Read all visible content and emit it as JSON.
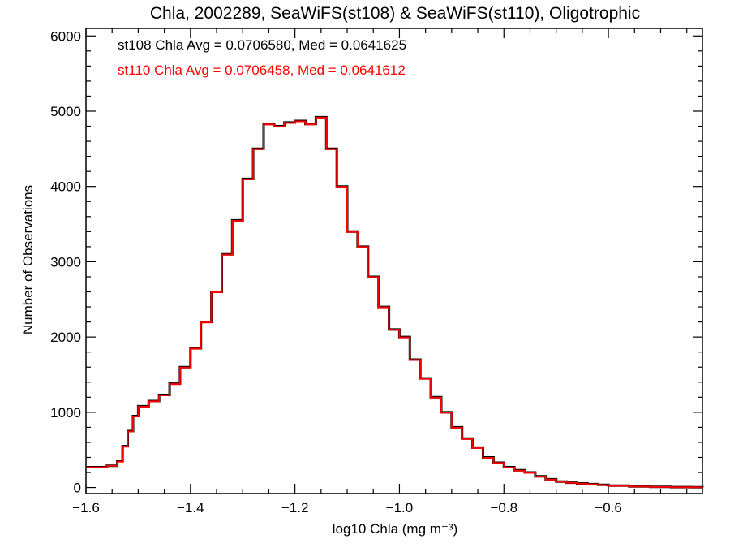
{
  "chart_data": {
    "type": "line",
    "step": true,
    "title": "Chla, 2002289, SeaWiFS(st108) & SeaWiFS(st110), Oligotrophic",
    "xlabel": "log10 Chla (mg m⁻³)",
    "ylabel": "Number of Observations",
    "xlim": [
      -1.6,
      -0.42
    ],
    "ylim": [
      -80,
      6100
    ],
    "x_ticks": [
      -1.6,
      -1.4,
      -1.2,
      -1.0,
      -0.8,
      -0.6
    ],
    "x_tick_labels": [
      "−1.6",
      "−1.4",
      "−1.2",
      "−1.0",
      "−0.8",
      "−0.6"
    ],
    "y_ticks": [
      0,
      1000,
      2000,
      3000,
      4000,
      5000,
      6000
    ],
    "y_tick_labels": [
      "0",
      "1000",
      "2000",
      "3000",
      "4000",
      "5000",
      "6000"
    ],
    "grid": false,
    "legend_placement": "top-left",
    "series": [
      {
        "name": "st108 Chla Avg = 0.0706580, Med = 0.0641625",
        "color": "#000000",
        "x": [
          -1.6,
          -1.58,
          -1.56,
          -1.54,
          -1.53,
          -1.52,
          -1.51,
          -1.5,
          -1.48,
          -1.46,
          -1.44,
          -1.42,
          -1.4,
          -1.38,
          -1.36,
          -1.34,
          -1.32,
          -1.3,
          -1.28,
          -1.26,
          -1.24,
          -1.22,
          -1.2,
          -1.18,
          -1.16,
          -1.14,
          -1.12,
          -1.1,
          -1.08,
          -1.06,
          -1.04,
          -1.02,
          -1.0,
          -0.98,
          -0.96,
          -0.94,
          -0.92,
          -0.9,
          -0.88,
          -0.86,
          -0.84,
          -0.82,
          -0.8,
          -0.78,
          -0.76,
          -0.74,
          -0.72,
          -0.7,
          -0.68,
          -0.66,
          -0.64,
          -0.62,
          -0.6,
          -0.56,
          -0.52,
          -0.48,
          -0.44,
          -0.42
        ],
        "y": [
          270,
          270,
          290,
          350,
          550,
          750,
          950,
          1080,
          1150,
          1230,
          1380,
          1600,
          1850,
          2200,
          2600,
          3100,
          3550,
          4100,
          4500,
          4830,
          4800,
          4850,
          4870,
          4830,
          4920,
          4500,
          4000,
          3400,
          3200,
          2800,
          2400,
          2100,
          2000,
          1700,
          1450,
          1200,
          1000,
          800,
          650,
          530,
          400,
          330,
          270,
          230,
          200,
          150,
          110,
          80,
          65,
          55,
          45,
          35,
          25,
          15,
          8,
          5,
          3,
          2
        ]
      },
      {
        "name": "st110 Chla Avg = 0.0706458, Med = 0.0641612",
        "color": "#ff0000",
        "x": [
          -1.6,
          -1.58,
          -1.56,
          -1.54,
          -1.53,
          -1.52,
          -1.51,
          -1.5,
          -1.48,
          -1.46,
          -1.44,
          -1.42,
          -1.4,
          -1.38,
          -1.36,
          -1.34,
          -1.32,
          -1.3,
          -1.28,
          -1.26,
          -1.24,
          -1.22,
          -1.2,
          -1.18,
          -1.16,
          -1.14,
          -1.12,
          -1.1,
          -1.08,
          -1.06,
          -1.04,
          -1.02,
          -1.0,
          -0.98,
          -0.96,
          -0.94,
          -0.92,
          -0.9,
          -0.88,
          -0.86,
          -0.84,
          -0.82,
          -0.8,
          -0.78,
          -0.76,
          -0.74,
          -0.72,
          -0.7,
          -0.68,
          -0.66,
          -0.64,
          -0.62,
          -0.6,
          -0.56,
          -0.52,
          -0.48,
          -0.44,
          -0.42
        ],
        "y": [
          268,
          268,
          288,
          345,
          545,
          745,
          945,
          1075,
          1145,
          1225,
          1375,
          1595,
          1845,
          2195,
          2595,
          3095,
          3545,
          4095,
          4495,
          4825,
          4795,
          4845,
          4865,
          4825,
          4915,
          4495,
          3995,
          3395,
          3195,
          2795,
          2395,
          2095,
          1995,
          1695,
          1445,
          1195,
          995,
          795,
          645,
          525,
          395,
          325,
          265,
          225,
          195,
          145,
          105,
          78,
          63,
          53,
          43,
          33,
          23,
          13,
          7,
          4,
          2,
          1
        ]
      }
    ]
  }
}
